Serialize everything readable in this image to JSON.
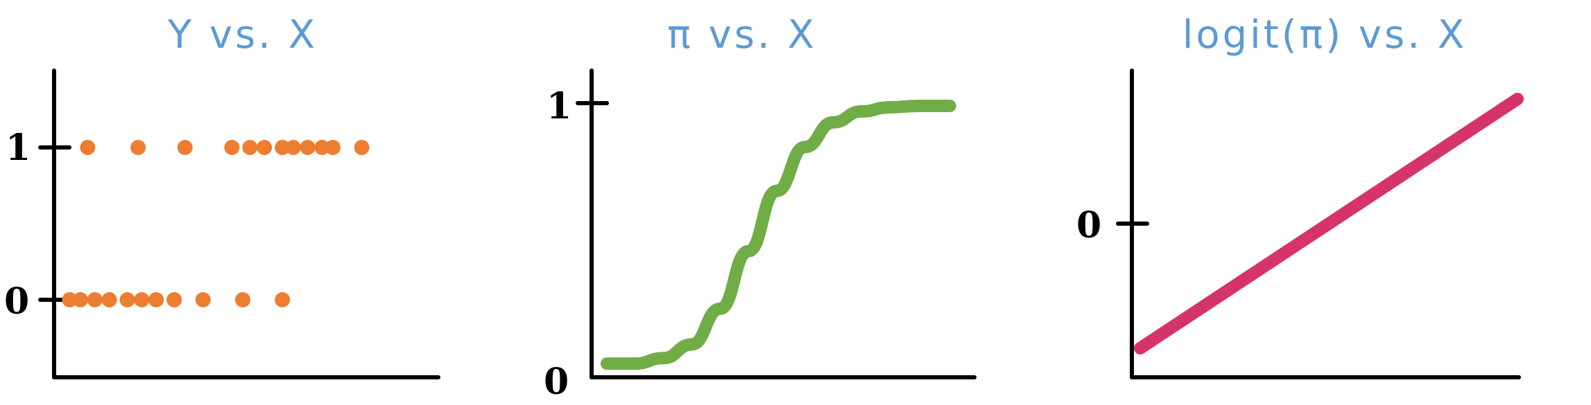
{
  "chart_data": [
    {
      "type": "scatter",
      "title": "Y vs. X",
      "yticks": [
        "1",
        "0"
      ],
      "colors": {
        "points": "#ed7d31",
        "axis": "#000000",
        "title": "#5b9bd5"
      },
      "ylim": [
        0,
        1
      ],
      "series": [
        {
          "values": [
            {
              "x": 0.07,
              "y": 1
            },
            {
              "x": 0.21,
              "y": 1
            },
            {
              "x": 0.34,
              "y": 1
            },
            {
              "x": 0.47,
              "y": 1
            },
            {
              "x": 0.52,
              "y": 1
            },
            {
              "x": 0.56,
              "y": 1
            },
            {
              "x": 0.61,
              "y": 1
            },
            {
              "x": 0.64,
              "y": 1
            },
            {
              "x": 0.68,
              "y": 1
            },
            {
              "x": 0.72,
              "y": 1
            },
            {
              "x": 0.75,
              "y": 1
            },
            {
              "x": 0.83,
              "y": 1
            },
            {
              "x": 0.02,
              "y": 0
            },
            {
              "x": 0.05,
              "y": 0
            },
            {
              "x": 0.09,
              "y": 0
            },
            {
              "x": 0.13,
              "y": 0
            },
            {
              "x": 0.18,
              "y": 0
            },
            {
              "x": 0.22,
              "y": 0
            },
            {
              "x": 0.26,
              "y": 0
            },
            {
              "x": 0.31,
              "y": 0
            },
            {
              "x": 0.39,
              "y": 0
            },
            {
              "x": 0.5,
              "y": 0
            },
            {
              "x": 0.61,
              "y": 0
            }
          ]
        }
      ]
    },
    {
      "type": "line",
      "title": "π vs. X",
      "yticks": [
        "1",
        "0"
      ],
      "colors": {
        "line": "#70ad47",
        "axis": "#000000",
        "title": "#5b9bd5"
      },
      "ylim": [
        0,
        1
      ],
      "series": [
        {
          "values": [
            {
              "x": 0.0,
              "y": 0.05
            },
            {
              "x": 0.08,
              "y": 0.05
            },
            {
              "x": 0.16,
              "y": 0.07
            },
            {
              "x": 0.24,
              "y": 0.12
            },
            {
              "x": 0.32,
              "y": 0.25
            },
            {
              "x": 0.4,
              "y": 0.46
            },
            {
              "x": 0.48,
              "y": 0.68
            },
            {
              "x": 0.56,
              "y": 0.84
            },
            {
              "x": 0.64,
              "y": 0.93
            },
            {
              "x": 0.72,
              "y": 0.97
            },
            {
              "x": 0.8,
              "y": 0.985
            },
            {
              "x": 0.88,
              "y": 0.99
            },
            {
              "x": 0.97,
              "y": 0.99
            }
          ]
        }
      ]
    },
    {
      "type": "line",
      "title": "logit(π) vs. X",
      "yticks": [
        "0"
      ],
      "colors": {
        "line": "#d6336c",
        "axis": "#000000",
        "title": "#5b9bd5"
      },
      "ylim": [
        -1,
        1
      ],
      "series": [
        {
          "values": [
            {
              "x": 0.1,
              "y": -0.9
            },
            {
              "x": 0.95,
              "y": 0.9
            }
          ]
        }
      ]
    }
  ]
}
